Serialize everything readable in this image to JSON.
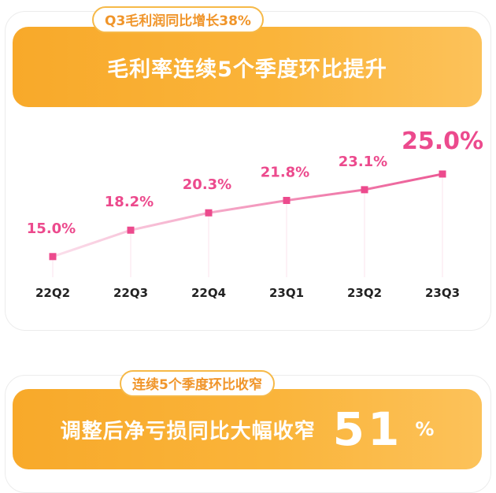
{
  "section1": {
    "tag": "Q3毛利润同比增长38%",
    "banner_title": "毛利率连续5个季度环比提升"
  },
  "chart_data": {
    "type": "line",
    "categories": [
      "22Q2",
      "22Q3",
      "22Q4",
      "23Q1",
      "23Q2",
      "23Q3"
    ],
    "values": [
      15.0,
      18.2,
      20.3,
      21.8,
      23.1,
      25.0
    ],
    "labels": [
      "15.0%",
      "18.2%",
      "20.3%",
      "21.8%",
      "23.1%",
      "25.0%"
    ],
    "ylim": [
      12.5,
      27.0
    ],
    "grid": false,
    "colors": {
      "line": "#f07aa8",
      "marker": "#ec4a8d",
      "label": "#ec4a8d",
      "axis_text": "#222222"
    }
  },
  "section2": {
    "tag": "连续5个季度环比收窄",
    "banner_title": "调整后净亏损同比大幅收窄",
    "number": "51",
    "unit": "%"
  },
  "colors": {
    "banner": "#f8a92a",
    "tag_text": "#f0952a",
    "tag_border": "#f6b948"
  }
}
